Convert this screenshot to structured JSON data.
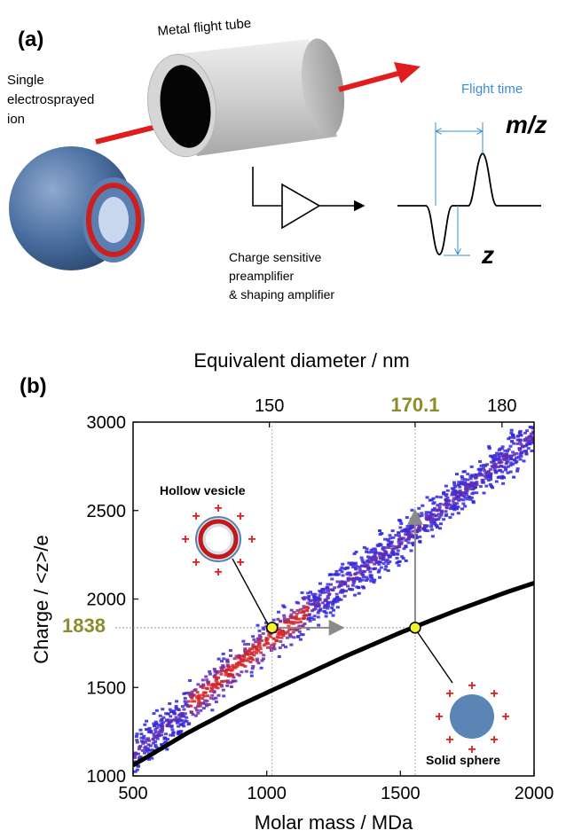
{
  "panel_a": {
    "label": "(a)",
    "tube_label": "Metal flight tube",
    "ion_label": [
      "Single",
      "electrosprayed",
      "ion"
    ],
    "flight_time_label": "Flight time",
    "mz_label": "m/z",
    "z_label": "z",
    "amplifier_label": [
      "Charge sensitive",
      "preamplifier",
      "& shaping amplifier"
    ],
    "colors": {
      "ion_shell": "#4a6fa0",
      "ion_ring": "#cc1f1f",
      "beam": "#e01c1c",
      "flight_time": "#3a8fd8"
    }
  },
  "panel_b": {
    "label": "(b)",
    "top_axis_title": "Equivalent diameter / nm",
    "top_ticks": [
      "150",
      "170.1",
      "180"
    ],
    "top_highlight": "170.1",
    "hollow_label": "Hollow vesicle",
    "solid_label": "Solid sphere",
    "charge_marker_label": "1838",
    "highlight_color": "#8c8c2a"
  },
  "chart_data": {
    "type": "scatter",
    "title": "",
    "xlabel": "Molar mass / MDa",
    "ylabel": "Charge / <z>/e",
    "xlim": [
      500,
      2000
    ],
    "ylim": [
      1000,
      3000
    ],
    "x_ticks": [
      500,
      1000,
      1500,
      2000
    ],
    "y_ticks": [
      1000,
      1500,
      2000,
      2500,
      3000
    ],
    "grid": false,
    "density_ridge": {
      "x": [
        500,
        600,
        700,
        800,
        900,
        1000,
        1100,
        1200,
        1300,
        1400,
        1500,
        1600,
        1700,
        1800,
        1900,
        2000
      ],
      "y": [
        1130,
        1270,
        1400,
        1530,
        1650,
        1770,
        1880,
        2000,
        2110,
        2230,
        2340,
        2460,
        2580,
        2700,
        2820,
        2950
      ]
    },
    "solid_sphere_curve": {
      "x": [
        500,
        700,
        900,
        1100,
        1300,
        1500,
        1700,
        1900,
        2000
      ],
      "y": [
        1060,
        1240,
        1400,
        1540,
        1680,
        1810,
        1930,
        2040,
        2090
      ]
    },
    "markers": [
      {
        "name": "Hollow vesicle",
        "x": 1020,
        "y": 1838
      },
      {
        "name": "Solid sphere",
        "x": 1555,
        "y": 1838
      }
    ],
    "charge_reference": 1838,
    "top_axis_positions_mda": [
      1010,
      1555,
      1880
    ]
  }
}
